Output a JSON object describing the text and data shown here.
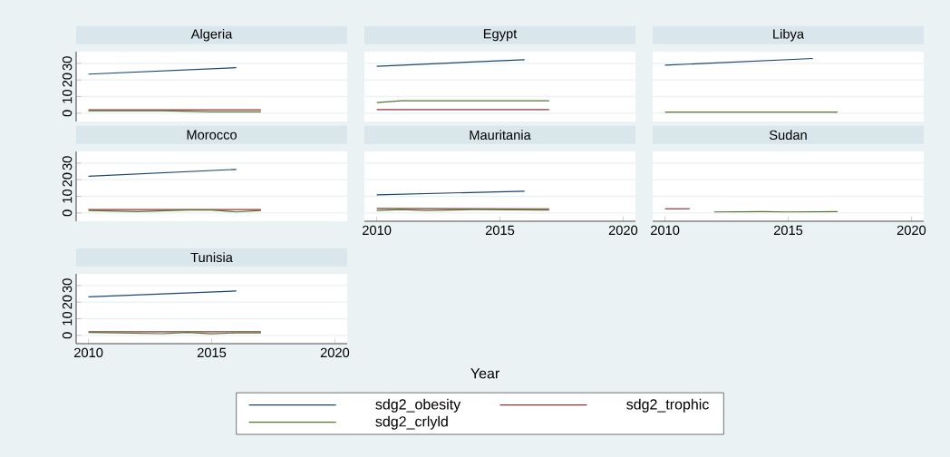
{
  "chart_data": [
    {
      "type": "line",
      "title": "Algeria",
      "xlim": [
        2009.5,
        2020.5
      ],
      "ylim": [
        -5,
        37
      ],
      "xticks": [
        2010,
        2015,
        2020
      ],
      "yticks": [
        0,
        10,
        20,
        30
      ],
      "grid": "y",
      "tick_labels": "y",
      "series": [
        {
          "color": "#1a476f",
          "x": [
            2010,
            2016
          ],
          "values": [
            23.5,
            27.4
          ]
        },
        {
          "color": "#90353b",
          "x": [
            2010,
            2017
          ],
          "values": [
            2.0,
            2.0
          ]
        },
        {
          "color": "#55752f",
          "x": [
            2010,
            2013,
            2015,
            2017
          ],
          "values": [
            1.5,
            1.5,
            0.8,
            0.8
          ]
        }
      ]
    },
    {
      "type": "line",
      "title": "Egypt",
      "xlim": [
        2009.5,
        2020.5
      ],
      "ylim": [
        -5,
        37
      ],
      "xticks": [
        2010,
        2015,
        2020
      ],
      "yticks": [
        0,
        10,
        20,
        30
      ],
      "grid": "y",
      "tick_labels": false,
      "series": [
        {
          "color": "#1a476f",
          "x": [
            2010,
            2016
          ],
          "values": [
            28.2,
            32.2
          ]
        },
        {
          "color": "#90353b",
          "x": [
            2010,
            2017
          ],
          "values": [
            2.2,
            2.2
          ]
        },
        {
          "color": "#55752f",
          "x": [
            2010,
            2011,
            2017
          ],
          "values": [
            6.4,
            7.5,
            7.5
          ]
        }
      ]
    },
    {
      "type": "line",
      "title": "Libya",
      "xlim": [
        2009.5,
        2020.5
      ],
      "ylim": [
        -5,
        37
      ],
      "xticks": [
        2010,
        2015,
        2020
      ],
      "yticks": [
        0,
        10,
        20,
        30
      ],
      "grid": "y",
      "tick_labels": false,
      "series": [
        {
          "color": "#1a476f",
          "x": [
            2010,
            2016
          ],
          "values": [
            28.9,
            32.9
          ]
        },
        {
          "color": "#55752f",
          "x": [
            2010,
            2017
          ],
          "values": [
            0.7,
            0.7
          ]
        }
      ]
    },
    {
      "type": "line",
      "title": "Morocco",
      "xlim": [
        2009.5,
        2020.5
      ],
      "ylim": [
        -5,
        37
      ],
      "xticks": [
        2010,
        2015,
        2020
      ],
      "yticks": [
        0,
        10,
        20,
        30
      ],
      "grid": "y",
      "tick_labels": "y",
      "series": [
        {
          "color": "#1a476f",
          "x": [
            2010,
            2016
          ],
          "values": [
            22.1,
            26.2
          ]
        },
        {
          "color": "#90353b",
          "x": [
            2010,
            2017
          ],
          "values": [
            2.0,
            2.0
          ]
        },
        {
          "color": "#55752f",
          "x": [
            2010,
            2012,
            2014,
            2015,
            2016,
            2017
          ],
          "values": [
            1.5,
            0.8,
            1.8,
            1.8,
            0.6,
            1.5
          ]
        }
      ]
    },
    {
      "type": "line",
      "title": "Mauritania",
      "xlabel": "Year",
      "xlim": [
        2009.5,
        2020.5
      ],
      "ylim": [
        -5,
        37
      ],
      "xticks": [
        2010,
        2015,
        2020
      ],
      "yticks": [
        0,
        10,
        20,
        30
      ],
      "grid": "y",
      "tick_labels": "x",
      "series": [
        {
          "color": "#1a476f",
          "x": [
            2010,
            2016
          ],
          "values": [
            10.9,
            13.1
          ]
        },
        {
          "color": "#90353b",
          "x": [
            2010,
            2017
          ],
          "values": [
            2.7,
            2.5
          ]
        },
        {
          "color": "#55752f",
          "x": [
            2010,
            2011,
            2012,
            2014,
            2017
          ],
          "values": [
            1.5,
            2.0,
            1.5,
            2.0,
            1.8
          ]
        }
      ]
    },
    {
      "type": "line",
      "title": "Sudan",
      "xlim": [
        2009.5,
        2020.5
      ],
      "ylim": [
        -5,
        37
      ],
      "xticks": [
        2010,
        2015,
        2020
      ],
      "yticks": [
        0,
        10,
        20,
        30
      ],
      "grid": "y",
      "tick_labels": "x",
      "series": [
        {
          "color": "#90353b",
          "x": [
            2010,
            2011
          ],
          "values": [
            2.5,
            2.5
          ]
        },
        {
          "color": "#55752f",
          "x": [
            2012,
            2014,
            2015,
            2017
          ],
          "values": [
            0.6,
            0.8,
            0.6,
            0.8
          ]
        }
      ]
    },
    {
      "type": "line",
      "title": "Tunisia",
      "legend": "bottom",
      "xlim": [
        2009.5,
        2020.5
      ],
      "ylim": [
        -5,
        37
      ],
      "xticks": [
        2010,
        2015,
        2020
      ],
      "yticks": [
        0,
        10,
        20,
        30
      ],
      "grid": "y",
      "series": [
        {
          "name": "sdg2_obesity",
          "color": "#1a476f",
          "x": [
            2010,
            2016
          ],
          "values": [
            23.2,
            26.7
          ]
        },
        {
          "name": "sdg2_trophic",
          "color": "#90353b",
          "x": [
            2010,
            2017
          ],
          "values": [
            2.2,
            2.2
          ]
        },
        {
          "name": "sdg2_crlyld",
          "color": "#55752f",
          "x": [
            2010,
            2013,
            2014,
            2015,
            2016,
            2017
          ],
          "values": [
            1.8,
            1.0,
            1.8,
            0.9,
            1.5,
            1.5
          ]
        }
      ]
    }
  ]
}
